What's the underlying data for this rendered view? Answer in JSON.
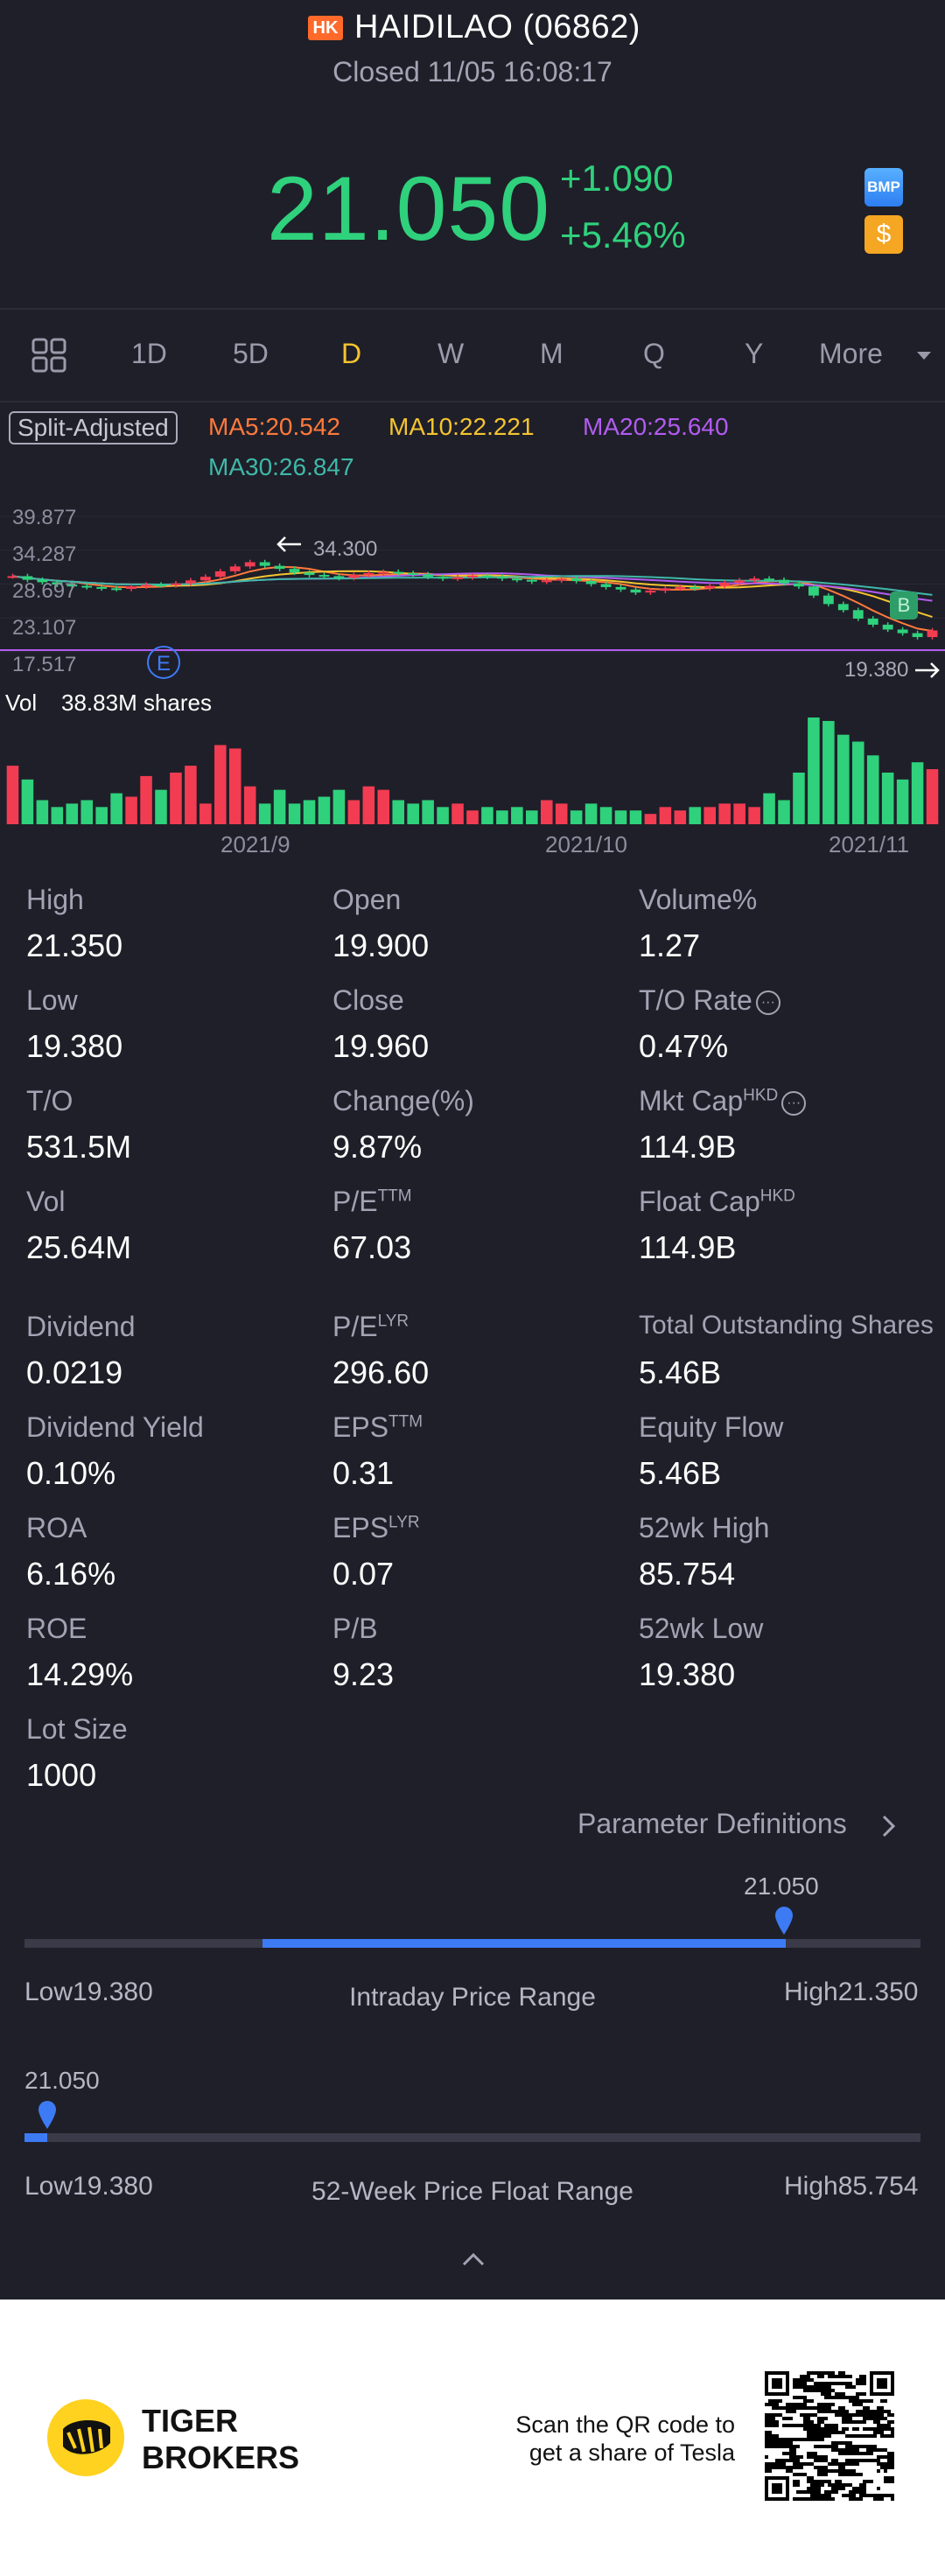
{
  "header": {
    "market_badge": "HK",
    "title": "HAIDILAO (06862)",
    "status": "Closed 11/05 16:08:17",
    "price": "21.050",
    "change": "+1.090",
    "change_pct": "+5.46%",
    "badge_bmp": "BMP",
    "badge_coin": "$"
  },
  "colors": {
    "up": "#f23c52",
    "down": "#2fd17c",
    "accent": "#f4c430",
    "blue": "#3d7bf5"
  },
  "tabs": {
    "d1": "1D",
    "d5": "5D",
    "day": "D",
    "week": "W",
    "month": "M",
    "quarter": "Q",
    "year": "Y",
    "more": "More"
  },
  "ma": {
    "split": "Split-Adjusted",
    "ma5": "MA5:20.542",
    "ma10": "MA10:22.221",
    "ma20": "MA20:25.640",
    "ma30": "MA30:26.847",
    "ma5_color": "#ff7a3c",
    "ma10_color": "#f4c430",
    "ma20_color": "#b25cf0",
    "ma30_color": "#3fb8a8"
  },
  "chart": {
    "y_labels": [
      "39.877",
      "34.287",
      "28.697",
      "23.107",
      "17.517"
    ],
    "high_marker": "34.300",
    "low_marker": "19.380",
    "event_e": "E",
    "event_b": "B",
    "vol_label": "Vol",
    "vol_value": "38.83M shares",
    "x_labels": [
      "2021/9",
      "2021/10",
      "2021/11"
    ]
  },
  "chart_data": {
    "type": "candlestick",
    "y_range": [
      17.517,
      39.877
    ],
    "closes": [
      30.0,
      29.4,
      29.0,
      28.6,
      28.4,
      28.2,
      28.0,
      27.9,
      28.3,
      28.6,
      28.5,
      28.8,
      29.3,
      29.9,
      30.8,
      31.6,
      32.3,
      31.7,
      31.2,
      30.6,
      30.2,
      30.0,
      29.7,
      30.2,
      30.5,
      30.7,
      30.5,
      30.3,
      29.9,
      29.6,
      29.8,
      30.1,
      29.9,
      29.6,
      29.4,
      29.1,
      29.3,
      29.6,
      29.2,
      28.7,
      28.2,
      27.8,
      27.3,
      27.6,
      28.0,
      28.2,
      28.0,
      28.4,
      28.9,
      29.3,
      29.6,
      29.4,
      28.8,
      28.3,
      26.8,
      25.4,
      24.4,
      23.0,
      22.0,
      21.2,
      20.6,
      19.96,
      21.05
    ],
    "volumes": [
      34,
      26,
      14,
      10,
      12,
      14,
      10,
      18,
      16,
      28,
      20,
      30,
      34,
      12,
      46,
      44,
      22,
      12,
      20,
      12,
      14,
      16,
      20,
      14,
      22,
      20,
      14,
      12,
      14,
      10,
      12,
      8,
      10,
      8,
      10,
      8,
      14,
      12,
      8,
      12,
      10,
      8,
      8,
      6,
      10,
      8,
      10,
      10,
      12,
      12,
      10,
      18,
      14,
      30,
      62,
      60,
      52,
      48,
      40,
      30,
      26,
      36,
      32
    ]
  },
  "stats": {
    "high_label": "High",
    "high": "21.350",
    "open_label": "Open",
    "open": "19.900",
    "volpct_label": "Volume%",
    "volpct": "1.27",
    "low_label": "Low",
    "low": "19.380",
    "close_label": "Close",
    "close": "19.960",
    "torate_label": "T/O Rate",
    "torate": "0.47%",
    "to_label": "T/O",
    "to": "531.5M",
    "changepct_label": "Change(%)",
    "changepct": "9.87%",
    "mktcap_label": "Mkt Cap",
    "mktcap_sup": "HKD",
    "mktcap": "114.9B",
    "vol_label": "Vol",
    "vol": "25.64M",
    "pe_ttm_label": "P/E",
    "pe_ttm_sup": "TTM",
    "pe_ttm": "67.03",
    "floatcap_label": "Float Cap",
    "floatcap_sup": "HKD",
    "floatcap": "114.9B",
    "dividend_label": "Dividend",
    "dividend": "0.0219",
    "pe_lyr_label": "P/E",
    "pe_lyr_sup": "LYR",
    "pe_lyr": "296.60",
    "tos_label": "Total Outstanding Shares",
    "tos": "5.46B",
    "divyield_label": "Dividend Yield",
    "divyield": "0.10%",
    "eps_ttm_label": "EPS",
    "eps_ttm_sup": "TTM",
    "eps_ttm": "0.31",
    "equityflow_label": "Equity Flow",
    "equityflow": "5.46B",
    "roa_label": "ROA",
    "roa": "6.16%",
    "eps_lyr_label": "EPS",
    "eps_lyr_sup": "LYR",
    "eps_lyr": "0.07",
    "w52high_label": "52wk High",
    "w52high": "85.754",
    "roe_label": "ROE",
    "roe": "14.29%",
    "pb_label": "P/B",
    "pb": "9.23",
    "w52low_label": "52wk Low",
    "w52low": "19.380",
    "lot_label": "Lot Size",
    "lot": "1000",
    "param_link": "Parameter Definitions"
  },
  "intraday": {
    "marker": "21.050",
    "low_label": "Low",
    "low": "19.380",
    "title": "Intraday Price Range",
    "high_label": "High",
    "high": "21.350",
    "fill_from": 0.266,
    "fill_to": 0.85
  },
  "week52": {
    "marker": "21.050",
    "low_label": "Low",
    "low": "19.380",
    "title": "52-Week Price Float Range",
    "high_label": "High",
    "high": "85.754",
    "fill_from": 0.0,
    "fill_to": 0.025
  },
  "footer": {
    "brand_line1": "TIGER",
    "brand_line2": "BROKERS",
    "scan_line1": "Scan the QR code to",
    "scan_line2": "get a share of Tesla"
  }
}
